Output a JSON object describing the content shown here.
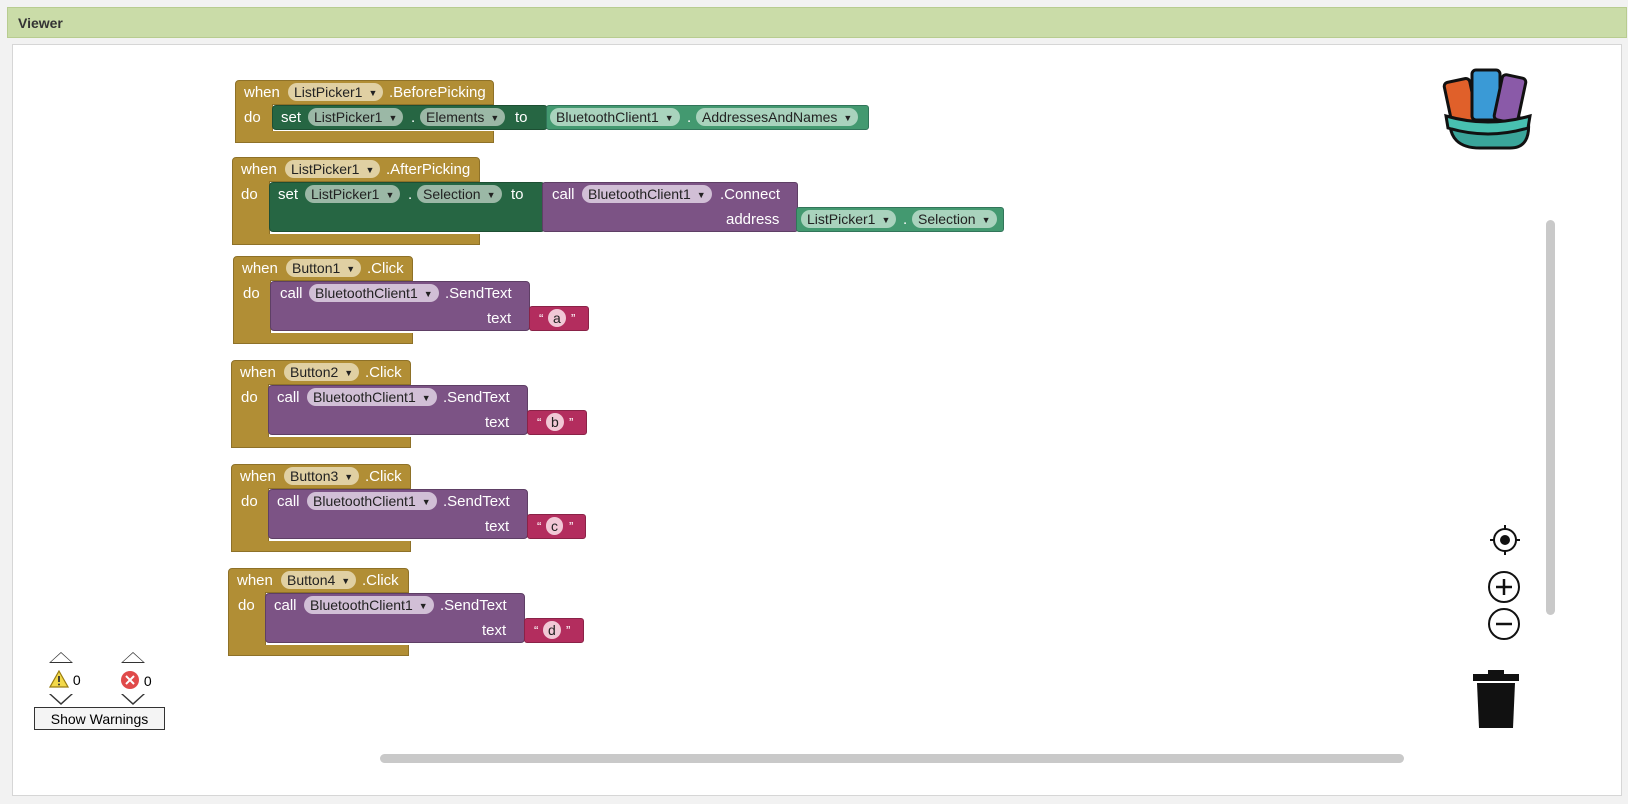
{
  "panel": {
    "title": "Viewer"
  },
  "blocks": [
    {
      "event": {
        "when": "when",
        "component": "ListPicker1",
        "name": ".BeforePicking",
        "do": "do"
      },
      "set": {
        "keyword": "set",
        "component": "ListPicker1",
        "dot": ".",
        "property": "Elements",
        "to": "to"
      },
      "getter": {
        "component": "BluetoothClient1",
        "dot": ".",
        "property": "AddressesAndNames"
      }
    },
    {
      "event": {
        "when": "when",
        "component": "ListPicker1",
        "name": ".AfterPicking",
        "do": "do"
      },
      "set": {
        "keyword": "set",
        "component": "ListPicker1",
        "dot": ".",
        "property": "Selection",
        "to": "to"
      },
      "call": {
        "keyword": "call",
        "component": "BluetoothClient1",
        "method": ".Connect",
        "arg": "address"
      },
      "getter": {
        "component": "ListPicker1",
        "dot": ".",
        "property": "Selection"
      }
    },
    {
      "event": {
        "when": "when",
        "component": "Button1",
        "name": ".Click",
        "do": "do"
      },
      "call": {
        "keyword": "call",
        "component": "BluetoothClient1",
        "method": ".SendText",
        "arg": "text"
      },
      "text": {
        "open": "“",
        "value": "a",
        "close": "”"
      }
    },
    {
      "event": {
        "when": "when",
        "component": "Button2",
        "name": ".Click",
        "do": "do"
      },
      "call": {
        "keyword": "call",
        "component": "BluetoothClient1",
        "method": ".SendText",
        "arg": "text"
      },
      "text": {
        "open": "“",
        "value": "b",
        "close": "”"
      }
    },
    {
      "event": {
        "when": "when",
        "component": "Button3",
        "name": ".Click",
        "do": "do"
      },
      "call": {
        "keyword": "call",
        "component": "BluetoothClient1",
        "method": ".SendText",
        "arg": "text"
      },
      "text": {
        "open": "“",
        "value": "c",
        "close": "”"
      }
    },
    {
      "event": {
        "when": "when",
        "component": "Button4",
        "name": ".Click",
        "do": "do"
      },
      "call": {
        "keyword": "call",
        "component": "BluetoothClient1",
        "method": ".SendText",
        "arg": "text"
      },
      "text": {
        "open": "“",
        "value": "d",
        "close": "”"
      }
    }
  ],
  "warnings": {
    "warning_count": "0",
    "error_count": "0",
    "button_label": "Show Warnings"
  },
  "icons": {
    "backpack": "backpack-icon",
    "center": "crosshair-icon",
    "zoom_in": "zoom-in-icon",
    "zoom_out": "zoom-out-icon",
    "trash": "trash-icon",
    "warning": "warning-icon",
    "error": "error-icon"
  },
  "colors": {
    "event": "#b18e35",
    "setter": "#266643",
    "call": "#7c5385",
    "getter": "#439970",
    "text": "#b32d5e",
    "header": "#cadca8"
  }
}
